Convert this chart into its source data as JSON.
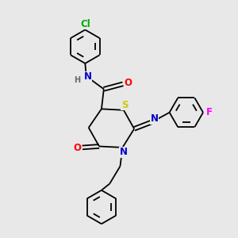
{
  "bg_color": "#e8e8e8",
  "bond_color": "#000000",
  "atom_colors": {
    "N": "#0000cc",
    "O": "#ff0000",
    "S": "#cccc00",
    "Cl": "#00aa00",
    "F": "#ff00ff",
    "H": "#666666",
    "C": "#000000"
  },
  "lw": 1.3,
  "r_ring": 0.72,
  "fs": 8.5,
  "fs_small": 7.0
}
